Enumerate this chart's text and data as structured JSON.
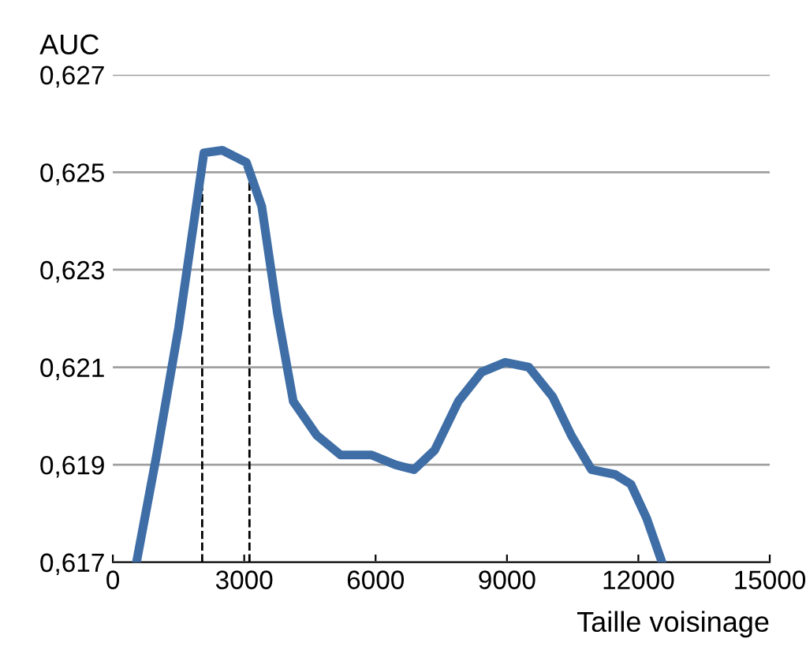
{
  "chart_data": {
    "type": "line",
    "xlabel": "Taille voisinage",
    "ylabel": "AUC",
    "x": [
      540,
      1000,
      1500,
      2080,
      2500,
      3050,
      3400,
      3760,
      4120,
      4660,
      5200,
      5910,
      6450,
      6880,
      7350,
      7890,
      8420,
      8960,
      9500,
      10040,
      10470,
      10930,
      11470,
      11830,
      12190,
      12540
    ],
    "series": [
      {
        "color": "#3f6ea6",
        "values": [
          0.617,
          0.6192,
          0.6218,
          0.6254,
          0.62545,
          0.6252,
          0.6243,
          0.6221,
          0.6203,
          0.6196,
          0.6192,
          0.6192,
          0.619,
          0.6189,
          0.6193,
          0.6203,
          0.6209,
          0.6211,
          0.621,
          0.6204,
          0.6196,
          0.6189,
          0.6188,
          0.6186,
          0.6179,
          0.617
        ]
      }
    ],
    "xlim": [
      0,
      15000
    ],
    "xticks": [
      0,
      3000,
      6000,
      9000,
      12000,
      15000
    ],
    "ylim": [
      0.617,
      0.627
    ],
    "yticks": [
      {
        "value": 0.617,
        "label": "0,617"
      },
      {
        "value": 0.619,
        "label": "0,619"
      },
      {
        "value": 0.621,
        "label": "0,621"
      },
      {
        "value": 0.623,
        "label": "0,623"
      },
      {
        "value": 0.625,
        "label": "0,625"
      },
      {
        "value": 0.627,
        "label": "0,627"
      }
    ],
    "grid": "y",
    "line_style": "solid",
    "ref_lines": [
      {
        "axis": "x",
        "value": 2040,
        "color": "#000000",
        "line_style": "dashed"
      },
      {
        "axis": "x",
        "value": 3120,
        "color": "#000000",
        "line_style": "dashed"
      }
    ]
  }
}
